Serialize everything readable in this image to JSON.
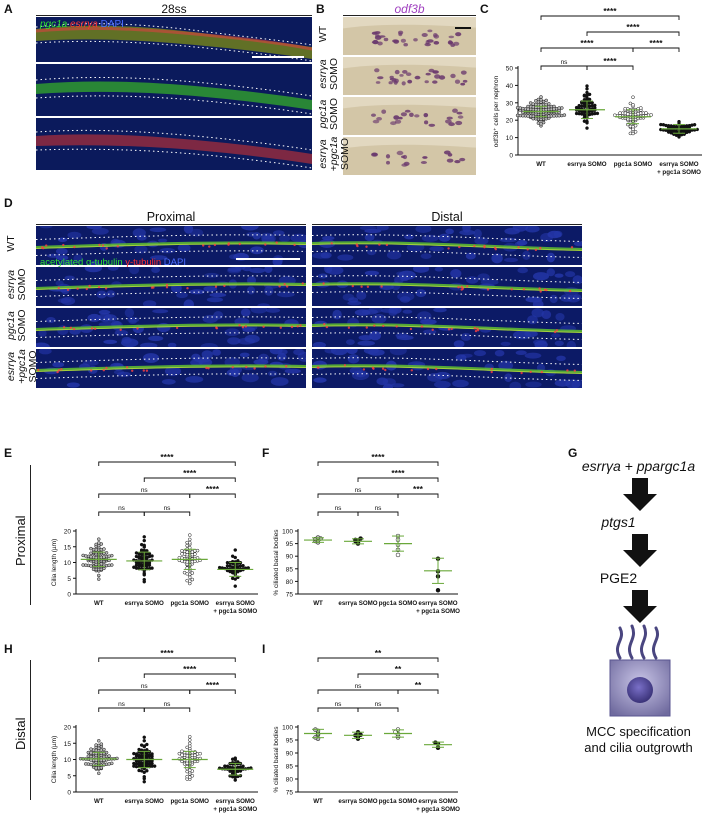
{
  "panel_letters": {
    "A": "A",
    "B": "B",
    "C": "C",
    "D": "D",
    "E": "E",
    "F": "F",
    "G": "G",
    "H": "H",
    "I": "I"
  },
  "panel_a": {
    "title": "28ss",
    "legend": [
      {
        "text": "pgc1a",
        "color": "#30e030",
        "italic": true
      },
      {
        "text": " esrrγa",
        "color": "#ff3030",
        "italic": true
      },
      {
        "text": " DAPI",
        "color": "#4a6cff",
        "italic": false
      }
    ]
  },
  "panel_b": {
    "title": "odf3b",
    "rows": [
      {
        "line1": "WT",
        "line2": "",
        "line3": ""
      },
      {
        "line1": "esrrγa",
        "line2": "SOMO",
        "line3": ""
      },
      {
        "line1": "pgc1a",
        "line2": "SOMO",
        "line3": ""
      },
      {
        "line1": "esrrγa",
        "line2": "+pgc1a",
        "line3": "SOMO"
      }
    ]
  },
  "panel_d": {
    "col_labels": [
      "Proximal",
      "Distal"
    ],
    "row_labels": [
      {
        "line1": "WT",
        "line2": "",
        "line3": ""
      },
      {
        "line1": "esrrγa",
        "line2": "SOMO",
        "line3": ""
      },
      {
        "line1": "pgc1a",
        "line2": "SOMO",
        "line3": ""
      },
      {
        "line1": "esrrγa",
        "line2": "+pgc1a",
        "line3": "SOMO"
      }
    ],
    "legend": [
      {
        "text": "acetylated α-tubulin",
        "color": "#30e030"
      },
      {
        "text": " γ-tubulin",
        "color": "#ff3030"
      },
      {
        "text": " DAPI",
        "color": "#4a6cff"
      }
    ]
  },
  "row_labels": {
    "proximal": "Proximal",
    "distal": "Distal"
  },
  "panel_g": {
    "top": "esrrγa + ppargc1a",
    "step2": "ptgs1",
    "step3": "PGE2",
    "bottom_line1": "MCC specification",
    "bottom_line2": "and cilia outgrowth"
  },
  "chart_data": [
    {
      "id": "C",
      "type": "scatter",
      "ylabel": "odf3b⁺ cells per nephron",
      "ylim": [
        0,
        50
      ],
      "yticks": [
        0,
        10,
        20,
        30,
        40,
        50
      ],
      "categories": [
        {
          "l1": "WT",
          "l2": ""
        },
        {
          "l1": "esrrγa SOMO",
          "l2": ""
        },
        {
          "l1": "pgc1a SOMO",
          "l2": ""
        },
        {
          "l1": "esrrγa SOMO",
          "l2": "+ pgc1a SOMO"
        }
      ],
      "marker_fill": [
        "#bbbbbb",
        "#111111",
        "#ffffff",
        "#111111"
      ],
      "means": [
        25,
        26,
        22,
        15
      ],
      "sd": [
        3,
        5,
        4,
        2.5
      ],
      "n": [
        110,
        60,
        70,
        55
      ],
      "brackets": [
        {
          "from": 0,
          "to": 3,
          "text": "****"
        },
        {
          "from": 1,
          "to": 3,
          "text": "****"
        },
        {
          "from": 0,
          "to": 2,
          "text": "****"
        },
        {
          "from": 2,
          "to": 3,
          "text": "****"
        },
        {
          "from": 0,
          "to": 1,
          "text": "ns"
        },
        {
          "from": 1,
          "to": 2,
          "text": "****"
        }
      ]
    },
    {
      "id": "E",
      "type": "scatter",
      "ylabel": "Cilia length (µm)",
      "ylim": [
        0,
        20
      ],
      "yticks": [
        0,
        5,
        10,
        15,
        20
      ],
      "categories": [
        {
          "l1": "WT",
          "l2": ""
        },
        {
          "l1": "esrrγa SOMO",
          "l2": ""
        },
        {
          "l1": "pgc1a SOMO",
          "l2": ""
        },
        {
          "l1": "esrrγa SOMO",
          "l2": "+ pgc1a SOMO"
        }
      ],
      "marker_fill": [
        "#bbbbbb",
        "#111111",
        "#ffffff",
        "#111111"
      ],
      "means": [
        11,
        10.5,
        11,
        7.8
      ],
      "sd": [
        2.3,
        2.8,
        3.2,
        2.2
      ],
      "n": [
        80,
        60,
        60,
        45
      ],
      "brackets": [
        {
          "from": 0,
          "to": 3,
          "text": "****"
        },
        {
          "from": 1,
          "to": 3,
          "text": "****"
        },
        {
          "from": 0,
          "to": 2,
          "text": "ns"
        },
        {
          "from": 2,
          "to": 3,
          "text": "****"
        },
        {
          "from": 0,
          "to": 1,
          "text": "ns"
        },
        {
          "from": 1,
          "to": 2,
          "text": "ns"
        }
      ]
    },
    {
      "id": "F",
      "type": "scatter",
      "ylabel": "% ciliated basal bodies",
      "ylim": [
        75,
        100
      ],
      "yticks": [
        75,
        80,
        85,
        90,
        95,
        100
      ],
      "categories": [
        {
          "l1": "WT",
          "l2": ""
        },
        {
          "l1": "esrrγa SOMO",
          "l2": ""
        },
        {
          "l1": "pgc1a SOMO",
          "l2": ""
        },
        {
          "l1": "esrrγa SOMO",
          "l2": "+ pgc1a SOMO"
        }
      ],
      "marker_fill": [
        "#bbbbbb",
        "#111111",
        "#ffffff",
        "#111111"
      ],
      "means": [
        96.4,
        95.9,
        95,
        84.2
      ],
      "sd": [
        0.9,
        1,
        3,
        5
      ],
      "points": [
        [
          96,
          97,
          95.5,
          96.8,
          96.2,
          97.4
        ],
        [
          95,
          96.5,
          95.4,
          97,
          96,
          96.3
        ],
        [
          98,
          94.5,
          92.5,
          90.5,
          96.5
        ],
        [
          89,
          84,
          82,
          76.5
        ]
      ],
      "brackets": [
        {
          "from": 0,
          "to": 3,
          "text": "****"
        },
        {
          "from": 1,
          "to": 3,
          "text": "****"
        },
        {
          "from": 0,
          "to": 2,
          "text": "ns"
        },
        {
          "from": 2,
          "to": 3,
          "text": "***"
        },
        {
          "from": 0,
          "to": 1,
          "text": "ns"
        },
        {
          "from": 1,
          "to": 2,
          "text": "ns"
        }
      ]
    },
    {
      "id": "H",
      "type": "scatter",
      "ylabel": "Cilia length (µm)",
      "ylim": [
        0,
        20
      ],
      "yticks": [
        0,
        5,
        10,
        15,
        20
      ],
      "categories": [
        {
          "l1": "WT",
          "l2": ""
        },
        {
          "l1": "esrrγa SOMO",
          "l2": ""
        },
        {
          "l1": "pgc1a SOMO",
          "l2": ""
        },
        {
          "l1": "esrrγa SOMO",
          "l2": "+ pgc1a SOMO"
        }
      ],
      "marker_fill": [
        "#bbbbbb",
        "#111111",
        "#ffffff",
        "#111111"
      ],
      "means": [
        10.2,
        10,
        10,
        7
      ],
      "sd": [
        2,
        2.5,
        2.5,
        1.8
      ],
      "n": [
        75,
        70,
        60,
        45
      ],
      "brackets": [
        {
          "from": 0,
          "to": 3,
          "text": "****"
        },
        {
          "from": 1,
          "to": 3,
          "text": "****"
        },
        {
          "from": 0,
          "to": 2,
          "text": "ns"
        },
        {
          "from": 2,
          "to": 3,
          "text": "****"
        },
        {
          "from": 0,
          "to": 1,
          "text": "ns"
        },
        {
          "from": 1,
          "to": 2,
          "text": "ns"
        }
      ]
    },
    {
      "id": "I",
      "type": "scatter",
      "ylabel": "% ciliated basal bodies",
      "ylim": [
        75,
        100
      ],
      "yticks": [
        75,
        80,
        85,
        90,
        95,
        100
      ],
      "categories": [
        {
          "l1": "WT",
          "l2": ""
        },
        {
          "l1": "esrrγa SOMO",
          "l2": ""
        },
        {
          "l1": "pgc1a SOMO",
          "l2": ""
        },
        {
          "l1": "esrrγa SOMO",
          "l2": "+ pgc1a SOMO"
        }
      ],
      "marker_fill": [
        "#bbbbbb",
        "#111111",
        "#ffffff",
        "#111111"
      ],
      "means": [
        97.5,
        96.8,
        97.5,
        93.2
      ],
      "sd": [
        1.6,
        1.2,
        1.4,
        1
      ],
      "points": [
        [
          95.5,
          97,
          98.5,
          99,
          97.5,
          96
        ],
        [
          95.5,
          97,
          98,
          96.5,
          96.8
        ],
        [
          99,
          98,
          96.5,
          97.3,
          96
        ],
        [
          94,
          92,
          93.5
        ]
      ],
      "brackets": [
        {
          "from": 0,
          "to": 3,
          "text": "**"
        },
        {
          "from": 1,
          "to": 3,
          "text": "**"
        },
        {
          "from": 0,
          "to": 2,
          "text": "ns"
        },
        {
          "from": 2,
          "to": 3,
          "text": "**"
        },
        {
          "from": 0,
          "to": 1,
          "text": "ns"
        },
        {
          "from": 1,
          "to": 2,
          "text": "ns"
        }
      ]
    }
  ]
}
